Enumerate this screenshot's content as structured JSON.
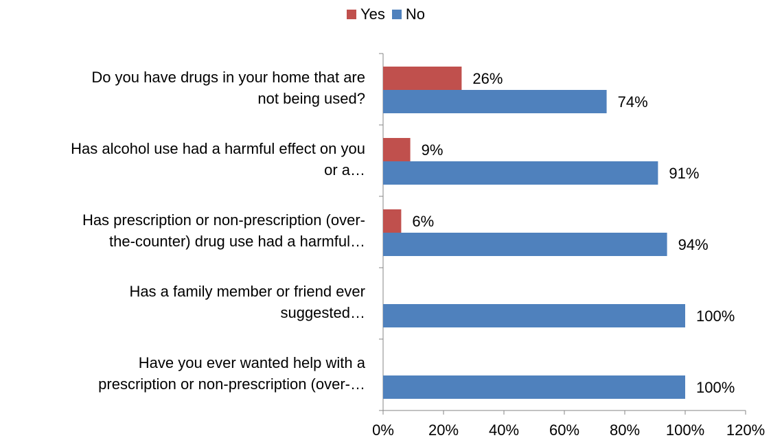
{
  "chart_data": {
    "type": "bar",
    "orientation": "horizontal",
    "categories": [
      [
        "Do you have drugs in your home that are",
        "not being used?"
      ],
      [
        "Has alcohol use had a harmful effect on you",
        "or a…"
      ],
      [
        "Has prescription or non-prescription (over-",
        "the-counter) drug use had a harmful…"
      ],
      [
        "Has a family member or friend ever",
        "suggested…"
      ],
      [
        "Have you ever wanted help with a",
        "prescription or non-prescription (over-…"
      ]
    ],
    "series": [
      {
        "name": "Yes",
        "color": "#c0504d",
        "values": [
          26,
          9,
          6,
          null,
          null
        ]
      },
      {
        "name": "No",
        "color": "#4f81bd",
        "values": [
          74,
          91,
          94,
          100,
          100
        ]
      }
    ],
    "value_labels": {
      "Yes": [
        "26%",
        "9%",
        "6%",
        "",
        ""
      ],
      "No": [
        "74%",
        "91%",
        "94%",
        "100%",
        "100%"
      ]
    },
    "xlim": [
      0,
      120
    ],
    "xticks": [
      0,
      20,
      40,
      60,
      80,
      100,
      120
    ],
    "xtick_labels": [
      "0%",
      "20%",
      "40%",
      "60%",
      "80%",
      "100%",
      "120%"
    ],
    "grid": false,
    "legend_position": "top-center",
    "title": "",
    "xlabel": "",
    "ylabel": ""
  }
}
